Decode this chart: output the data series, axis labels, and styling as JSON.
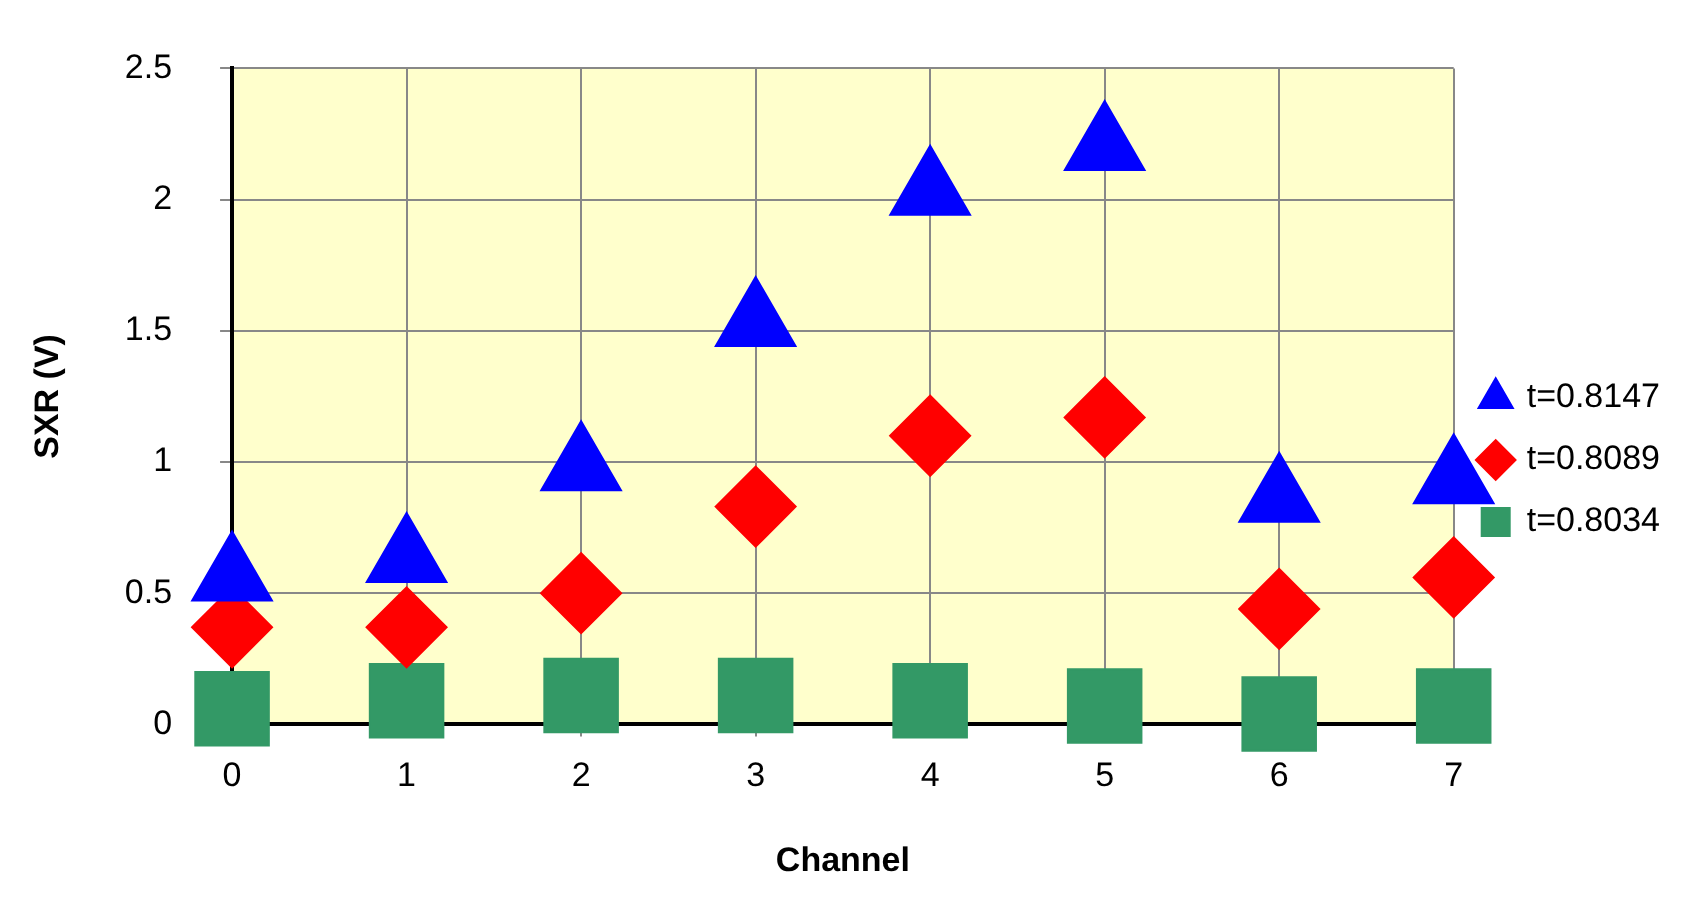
{
  "chart_data": {
    "type": "scatter",
    "xlabel": "Channel",
    "ylabel": "SXR (V)",
    "x": [
      0,
      1,
      2,
      3,
      4,
      5,
      6,
      7
    ],
    "xlim": [
      0,
      7
    ],
    "xticks": [
      0,
      1,
      2,
      3,
      4,
      5,
      6,
      7
    ],
    "ylim": [
      0,
      2.5
    ],
    "yticks": [
      0,
      0.5,
      1,
      1.5,
      2,
      2.5
    ],
    "grid": true,
    "legend": "right",
    "series": [
      {
        "name": "t=0.8147",
        "color": "#0000ff",
        "marker": "triangle",
        "values": [
          0.56,
          0.63,
          0.98,
          1.53,
          2.03,
          2.2,
          0.86,
          0.93
        ]
      },
      {
        "name": "t=0.8089",
        "color": "#ff0000",
        "marker": "diamond",
        "values": [
          0.37,
          0.37,
          0.5,
          0.83,
          1.1,
          1.17,
          0.44,
          0.56
        ]
      },
      {
        "name": "t=0.8034",
        "color": "#339966",
        "marker": "square",
        "values": [
          0.06,
          0.09,
          0.11,
          0.11,
          0.09,
          0.07,
          0.04,
          0.07
        ]
      }
    ]
  }
}
